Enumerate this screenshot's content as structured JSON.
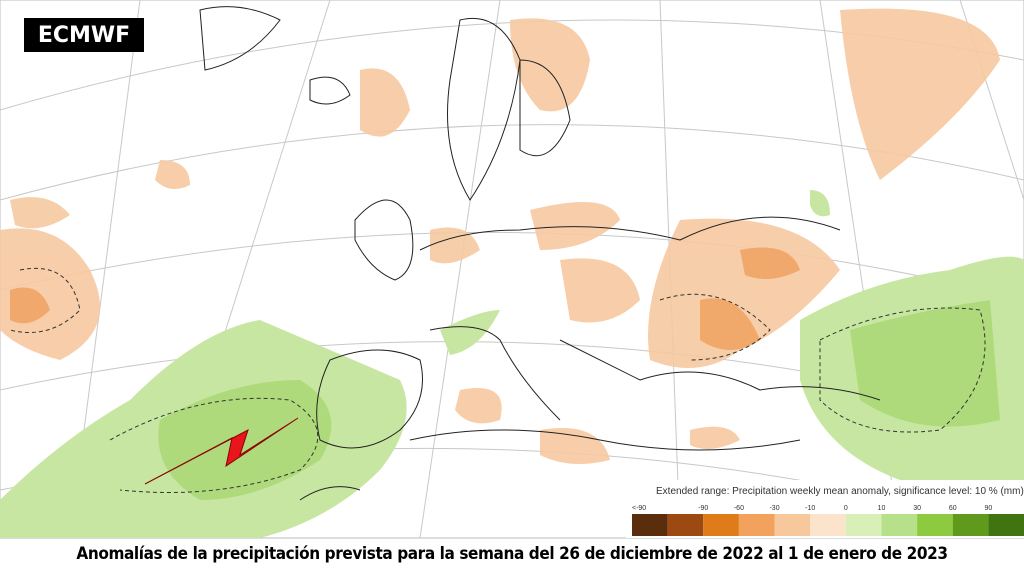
{
  "logo": "ECMWF",
  "legend": {
    "title": "Extended range: Precipitation weekly mean anomaly, significance level: 10 % (mm)",
    "labels": [
      "<-90",
      "-90",
      "-60",
      "-30",
      "-10",
      "0",
      "10",
      "30",
      "60",
      "90"
    ],
    "colors": [
      "#5a2d0c",
      "#9c4a12",
      "#e07b1a",
      "#f3a25d",
      "#f7c89c",
      "#fbe3cc",
      "#d9efb8",
      "#b7e08a",
      "#8ccb3f",
      "#5f9a1c",
      "#3f7410"
    ]
  },
  "caption": "Anomalías de la precipitación prevista para la semana del 26 de diciembre de 2022 al 1 de enero de 2023"
}
